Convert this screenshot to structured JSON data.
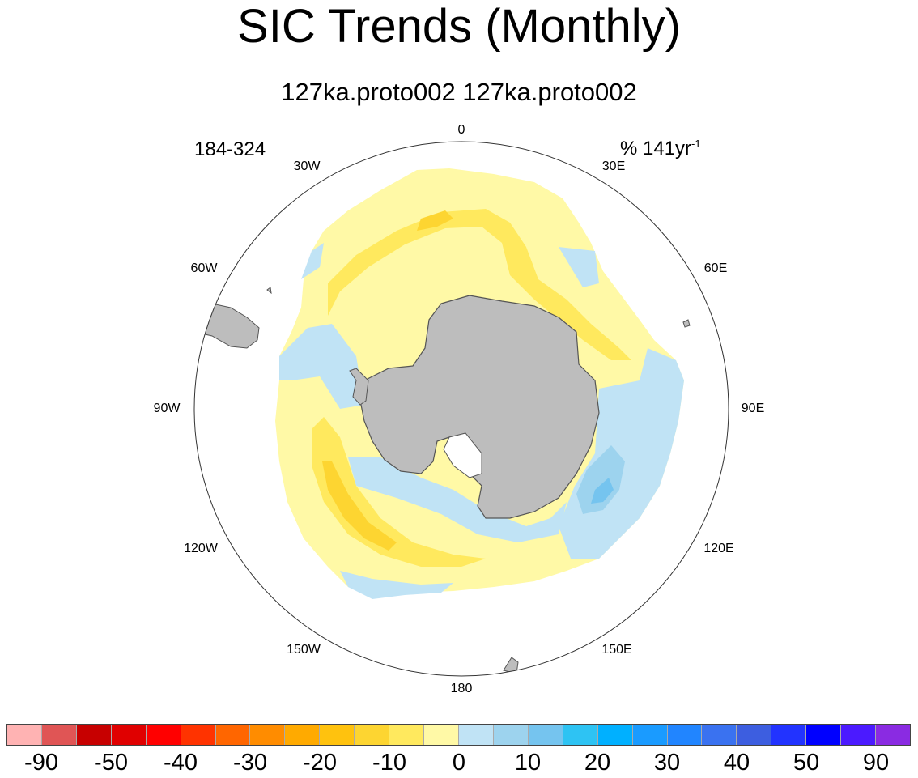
{
  "title": "SIC Trends (Monthly)",
  "subtitle": "127ka.proto002  127ka.proto002",
  "period": "184-324",
  "units": {
    "base": "% 141yr",
    "exponent": "-1"
  },
  "longitude_labels": [
    "0",
    "30E",
    "60E",
    "90E",
    "120E",
    "150E",
    "180",
    "150W",
    "120W",
    "90W",
    "60W",
    "30W"
  ],
  "colors": {
    "land": "#bdbdbd",
    "coast": "#555555",
    "pos_light": "#c0e3f5",
    "pos_mid": "#9dd3ee",
    "pos_strong": "#75c4ef",
    "neg_light": "#fff9a6",
    "neg_mid": "#ffe95e",
    "neg_strong": "#fdd531"
  },
  "colorbar": {
    "colors": [
      "#ffb3b3",
      "#e05555",
      "#c70000",
      "#e00000",
      "#ff0000",
      "#ff3300",
      "#ff6600",
      "#ff8c00",
      "#ffaa00",
      "#ffc20e",
      "#fdd531",
      "#ffe95e",
      "#fff9a6",
      "#c0e3f5",
      "#9dd3ee",
      "#75c4ef",
      "#2ec3f3",
      "#00b0ff",
      "#1a9bff",
      "#2185ff",
      "#3a72f0",
      "#3d5ee0",
      "#2233ff",
      "#0000ff",
      "#4b1aff",
      "#8a2be2"
    ],
    "tick_labels": [
      "-90",
      "-50",
      "-40",
      "-30",
      "-20",
      "-10",
      "0",
      "10",
      "20",
      "30",
      "40",
      "50",
      "90"
    ]
  }
}
